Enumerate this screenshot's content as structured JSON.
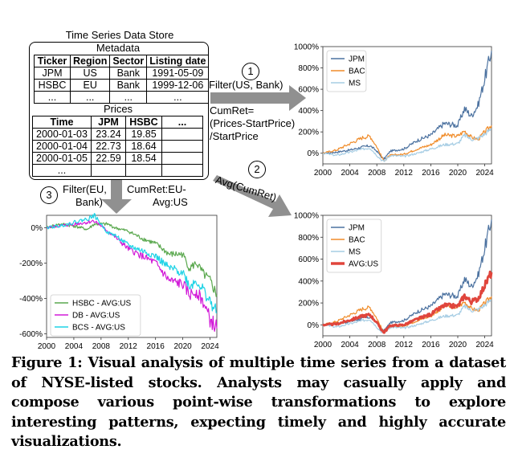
{
  "store": {
    "title": "Time Series Data Store",
    "metadata": {
      "title": "Metadata",
      "headers": [
        "Ticker",
        "Region",
        "Sector",
        "Listing date"
      ],
      "rows": [
        [
          "JPM",
          "US",
          "Bank",
          "1991-05-09"
        ],
        [
          "HSBC",
          "EU",
          "Bank",
          "1999-12-06"
        ],
        [
          "...",
          "...",
          "...",
          "..."
        ]
      ]
    },
    "prices": {
      "title": "Prices",
      "headers": [
        "Time",
        "JPM",
        "HSBC",
        "..."
      ],
      "rows": [
        [
          "2000-01-03",
          "23.24",
          "19.85",
          ""
        ],
        [
          "2000-01-04",
          "22.73",
          "18.64",
          ""
        ],
        [
          "2000-01-05",
          "22.59",
          "18.54",
          ""
        ],
        [
          "...",
          "",
          "",
          ""
        ]
      ]
    }
  },
  "steps": {
    "s1": {
      "num": "1",
      "filter": "Filter(US, Bank)",
      "cumret1": "CumRet=",
      "cumret2": "(Prices-StartPrice)",
      "cumret3": "/StartPrice"
    },
    "s2": {
      "num": "2",
      "label": "Avg(CumRet)"
    },
    "s3": {
      "num": "3",
      "filter1": "Filter(EU,",
      "filter2": "Bank)",
      "cumret1": "CumRet:EU-",
      "cumret2": "Avg:US"
    }
  },
  "colors": {
    "JPM": "#4c72a0",
    "BAC": "#f08c2a",
    "MS": "#a6cde4",
    "AVG": "#e0453c",
    "HSBC": "#5aa84e",
    "DB": "#d21bd8",
    "BCS": "#1fd3e6"
  },
  "chart_data": [
    {
      "type": "line",
      "x": [
        2000,
        2002,
        2004,
        2006,
        2007,
        2008,
        2009,
        2010,
        2012,
        2014,
        2016,
        2018,
        2020,
        2021,
        2022,
        2023,
        2024,
        2025
      ],
      "xticks": [
        "2000",
        "2004",
        "2008",
        "2012",
        "2016",
        "2020",
        "2024"
      ],
      "yticks": [
        "0%",
        "200%",
        "400%",
        "600%",
        "800%",
        "1000%"
      ],
      "ylim": [
        -100,
        1000
      ],
      "legend": "top-left",
      "series": [
        {
          "name": "JPM",
          "values": [
            0,
            10,
            30,
            60,
            70,
            20,
            -60,
            20,
            40,
            120,
            170,
            280,
            260,
            420,
            350,
            450,
            700,
            960
          ]
        },
        {
          "name": "BAC",
          "values": [
            0,
            30,
            90,
            150,
            160,
            60,
            -70,
            -20,
            -10,
            40,
            80,
            170,
            160,
            210,
            150,
            130,
            200,
            260
          ]
        },
        {
          "name": "MS",
          "values": [
            0,
            -20,
            10,
            40,
            50,
            -20,
            -80,
            -20,
            -30,
            0,
            40,
            80,
            90,
            170,
            130,
            140,
            180,
            230
          ]
        }
      ]
    },
    {
      "type": "line",
      "x": [
        2000,
        2002,
        2004,
        2006,
        2007,
        2008,
        2009,
        2010,
        2012,
        2014,
        2016,
        2018,
        2020,
        2021,
        2022,
        2023,
        2024,
        2025
      ],
      "xticks": [
        "2000",
        "2004",
        "2008",
        "2012",
        "2016",
        "2020",
        "2024"
      ],
      "yticks": [
        "0%",
        "200%",
        "400%",
        "600%",
        "800%",
        "1000%"
      ],
      "ylim": [
        -100,
        1000
      ],
      "legend": "top-left",
      "series": [
        {
          "name": "JPM",
          "values": [
            0,
            10,
            30,
            60,
            70,
            20,
            -60,
            20,
            40,
            120,
            170,
            280,
            260,
            420,
            350,
            450,
            700,
            960
          ]
        },
        {
          "name": "BAC",
          "values": [
            0,
            30,
            90,
            150,
            160,
            60,
            -70,
            -20,
            -10,
            40,
            80,
            170,
            160,
            210,
            150,
            130,
            200,
            260
          ]
        },
        {
          "name": "MS",
          "values": [
            0,
            -20,
            10,
            40,
            50,
            -20,
            -80,
            -20,
            -30,
            0,
            40,
            80,
            90,
            170,
            130,
            140,
            180,
            230
          ]
        },
        {
          "name": "AVG:US",
          "values": [
            0,
            7,
            43,
            83,
            93,
            20,
            -70,
            -7,
            0,
            53,
            97,
            177,
            170,
            267,
            210,
            240,
            360,
            480
          ]
        }
      ]
    },
    {
      "type": "line",
      "x": [
        2000,
        2002,
        2004,
        2006,
        2007,
        2008,
        2009,
        2010,
        2012,
        2014,
        2016,
        2018,
        2020,
        2021,
        2022,
        2023,
        2024,
        2025
      ],
      "xticks": [
        "2000",
        "2004",
        "2008",
        "2012",
        "2016",
        "2020",
        "2024"
      ],
      "yticks": [
        "0%",
        "-200%",
        "-400%",
        "-600%"
      ],
      "ylim": [
        -620,
        70
      ],
      "legend": "bottom-left",
      "series": [
        {
          "name": "HSBC - AVG:US",
          "values": [
            0,
            20,
            10,
            -10,
            20,
            20,
            20,
            0,
            -20,
            -60,
            -90,
            -150,
            -150,
            -230,
            -200,
            -260,
            -300,
            -380
          ]
        },
        {
          "name": "DB - AVG:US",
          "values": [
            0,
            10,
            20,
            30,
            40,
            10,
            -20,
            -50,
            -120,
            -160,
            -200,
            -300,
            -320,
            -380,
            -360,
            -420,
            -520,
            -570
          ]
        },
        {
          "name": "BCS - AVG:US",
          "values": [
            0,
            10,
            30,
            50,
            70,
            20,
            -30,
            -40,
            -100,
            -130,
            -160,
            -230,
            -250,
            -330,
            -300,
            -350,
            -420,
            -480
          ]
        }
      ]
    }
  ],
  "caption": "Figure 1: Visual analysis of multiple time series from a dataset of NYSE-listed stocks. Analysts may casually apply and compose various point-wise transformations to explore interesting patterns, expecting timely and highly accurate visualizations."
}
